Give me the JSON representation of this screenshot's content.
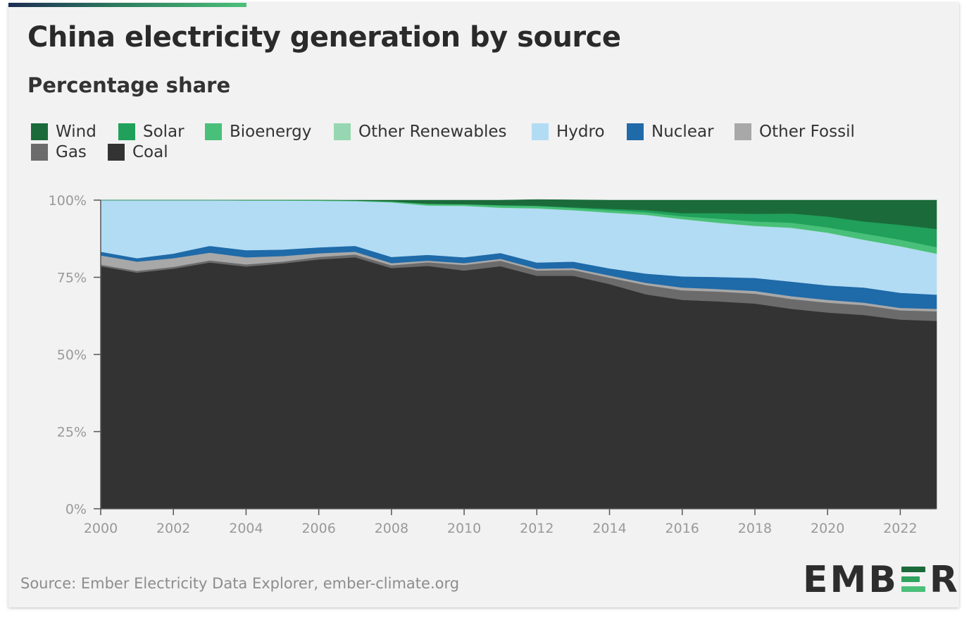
{
  "header": {
    "title": "China electricity generation by source",
    "subtitle": "Percentage share"
  },
  "legend": [
    {
      "name": "Wind",
      "color": "#1b6b3a"
    },
    {
      "name": "Solar",
      "color": "#20a05a"
    },
    {
      "name": "Bioenergy",
      "color": "#48c079"
    },
    {
      "name": "Other Renewables",
      "color": "#96d7b1"
    },
    {
      "name": "Hydro",
      "color": "#b2dcf4"
    },
    {
      "name": "Nuclear",
      "color": "#1f6aa8"
    },
    {
      "name": "Other Fossil",
      "color": "#a8a8a8"
    },
    {
      "name": "Gas",
      "color": "#6b6b6b"
    },
    {
      "name": "Coal",
      "color": "#333333"
    }
  ],
  "chart_data": {
    "type": "area",
    "stacked": true,
    "title": "China electricity generation by source",
    "subtitle": "Percentage share",
    "xlabel": "",
    "ylabel": "",
    "ylim": [
      0,
      100
    ],
    "yticks": [
      "0%",
      "25%",
      "50%",
      "75%",
      "100%"
    ],
    "xticks": [
      "2000",
      "2002",
      "2004",
      "2006",
      "2008",
      "2010",
      "2012",
      "2014",
      "2016",
      "2018",
      "2020",
      "2022"
    ],
    "x": [
      2000,
      2001,
      2002,
      2003,
      2004,
      2005,
      2006,
      2007,
      2008,
      2009,
      2010,
      2011,
      2012,
      2013,
      2014,
      2015,
      2016,
      2017,
      2018,
      2019,
      2020,
      2021,
      2022,
      2023
    ],
    "series": [
      {
        "name": "Coal",
        "color": "#333333",
        "values": [
          78.6,
          76.5,
          77.8,
          79.8,
          78.5,
          79.5,
          80.8,
          81.5,
          78.0,
          78.7,
          77.2,
          78.6,
          75.5,
          75.5,
          72.8,
          69.5,
          67.7,
          67.2,
          66.5,
          64.8,
          63.6,
          62.8,
          61.3,
          60.9
        ]
      },
      {
        "name": "Gas",
        "color": "#6b6b6b",
        "values": [
          0.5,
          0.6,
          0.6,
          0.7,
          0.7,
          0.6,
          0.8,
          0.9,
          0.9,
          1.2,
          1.8,
          1.8,
          1.7,
          1.9,
          2.1,
          3.0,
          3.1,
          3.2,
          3.2,
          3.2,
          3.2,
          3.2,
          3.0,
          3.1
        ]
      },
      {
        "name": "Other Fossil",
        "color": "#a8a8a8",
        "values": [
          3.0,
          3.0,
          2.8,
          2.5,
          2.3,
          1.8,
          1.2,
          0.9,
          0.7,
          0.5,
          0.6,
          0.6,
          0.6,
          0.6,
          0.7,
          0.7,
          0.9,
          0.8,
          0.9,
          0.9,
          0.9,
          0.8,
          0.8,
          0.8
        ]
      },
      {
        "name": "Nuclear",
        "color": "#1f6aa8",
        "values": [
          1.2,
          1.1,
          1.5,
          2.2,
          2.3,
          2.1,
          1.9,
          1.9,
          2.0,
          1.9,
          1.9,
          1.9,
          2.0,
          2.1,
          2.3,
          3.0,
          3.6,
          3.9,
          4.2,
          4.7,
          4.7,
          4.9,
          4.9,
          4.6
        ]
      },
      {
        "name": "Hydro",
        "color": "#b2dcf4",
        "values": [
          16.7,
          18.8,
          17.3,
          14.8,
          16.1,
          15.9,
          15.1,
          14.5,
          17.7,
          15.9,
          16.6,
          14.6,
          17.5,
          16.6,
          18.0,
          19.0,
          18.5,
          17.5,
          16.8,
          17.4,
          17.0,
          15.4,
          15.0,
          13.2
        ]
      },
      {
        "name": "Other Renewables",
        "color": "#96d7b1",
        "values": [
          0.0,
          0.0,
          0.0,
          0.0,
          0.0,
          0.0,
          0.0,
          0.0,
          0.0,
          0.1,
          0.1,
          0.1,
          0.1,
          0.1,
          0.1,
          0.1,
          0.1,
          0.1,
          0.1,
          0.1,
          0.1,
          0.1,
          0.1,
          0.1
        ]
      },
      {
        "name": "Bioenergy",
        "color": "#48c079",
        "values": [
          0.0,
          0.0,
          0.0,
          0.0,
          0.1,
          0.1,
          0.2,
          0.2,
          0.3,
          0.5,
          0.5,
          0.7,
          0.7,
          0.7,
          0.8,
          0.8,
          0.9,
          1.3,
          1.4,
          1.6,
          1.7,
          2.0,
          2.1,
          2.1
        ]
      },
      {
        "name": "Solar",
        "color": "#20a05a",
        "values": [
          0.0,
          0.0,
          0.0,
          0.0,
          0.0,
          0.0,
          0.0,
          0.0,
          0.0,
          0.0,
          0.0,
          0.1,
          0.1,
          0.2,
          0.4,
          0.7,
          1.0,
          1.8,
          2.5,
          3.0,
          3.5,
          3.9,
          4.8,
          5.9
        ]
      },
      {
        "name": "Wind",
        "color": "#1b6b3a",
        "values": [
          0.0,
          0.0,
          0.0,
          0.0,
          0.0,
          0.0,
          0.0,
          0.1,
          0.4,
          1.2,
          1.3,
          1.6,
          2.0,
          2.4,
          2.8,
          3.2,
          4.2,
          4.2,
          4.4,
          4.3,
          5.3,
          6.9,
          8.0,
          9.3
        ]
      }
    ]
  },
  "footer": {
    "source": "Source: Ember Electricity Data Explorer, ember-climate.org",
    "logo_prefix": "EMB",
    "logo_middle": "E",
    "logo_suffix": "R",
    "logo_bar_colors": [
      "#1b6b3a",
      "#2fa35e",
      "#4cc07a"
    ]
  }
}
